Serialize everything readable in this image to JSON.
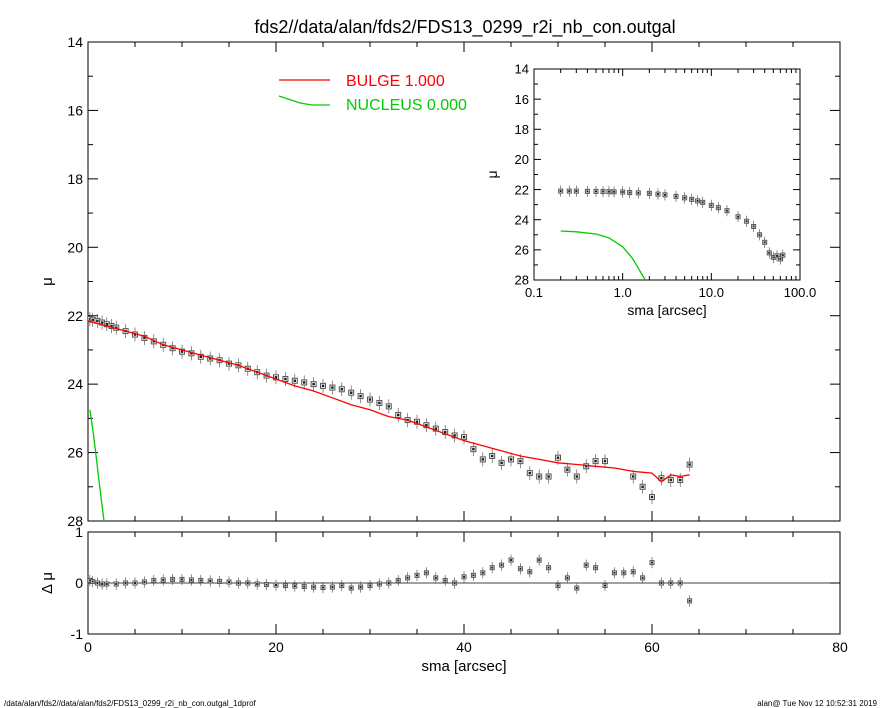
{
  "title": "fds2//data/alan/fds2/FDS13_0299_r2i_nb_con.outgal",
  "footer": {
    "left": "/data/alan/fds2//data/alan/fds2/FDS13_0299_r2i_nb_con.outgal_1dprof",
    "right": "alan@  Tue Nov 12 10:52:31 2019"
  },
  "colors": {
    "data": "#000000",
    "bulge": "#ff0000",
    "nucleus": "#00cc00",
    "markers": "#555555"
  },
  "chart_data": [
    {
      "id": "main-profile",
      "type": "scatter",
      "xlabel": "",
      "ylabel": "μ",
      "xlim": [
        0,
        80
      ],
      "ylim": [
        28,
        14
      ],
      "x_ticks": [],
      "y_ticks": [
        "14",
        "16",
        "18",
        "20",
        "22",
        "24",
        "26",
        "28"
      ],
      "legend": [
        {
          "label": "BULGE  1.000",
          "color": "#ff0000"
        },
        {
          "label": "NUCLEUS  0.000",
          "color": "#00cc00"
        }
      ],
      "legend_position": "top-center",
      "series": [
        {
          "kind": "points",
          "x": [
            0.2,
            0.5,
            1,
            1.5,
            2,
            2.5,
            3,
            4,
            5,
            6,
            7,
            8,
            9,
            10,
            11,
            12,
            13,
            14,
            15,
            16,
            17,
            18,
            19,
            20,
            21,
            22,
            23,
            24,
            25,
            26,
            27,
            28,
            29,
            30,
            31,
            32,
            33,
            34,
            35,
            36,
            37,
            38,
            39,
            40,
            41,
            42,
            43,
            44,
            45,
            46,
            47,
            48,
            49,
            50,
            51,
            52,
            53,
            54,
            55,
            58,
            59,
            60,
            61,
            62,
            63,
            64
          ],
          "y": [
            22.1,
            22.12,
            22.15,
            22.2,
            22.25,
            22.3,
            22.35,
            22.45,
            22.55,
            22.65,
            22.75,
            22.85,
            22.95,
            23.05,
            23.1,
            23.2,
            23.25,
            23.3,
            23.4,
            23.45,
            23.55,
            23.65,
            23.75,
            23.8,
            23.85,
            23.9,
            23.95,
            24.0,
            24.05,
            24.1,
            24.15,
            24.25,
            24.35,
            24.45,
            24.55,
            24.65,
            24.9,
            25.05,
            25.1,
            25.2,
            25.3,
            25.4,
            25.5,
            25.55,
            25.9,
            26.2,
            26.1,
            26.3,
            26.2,
            26.25,
            26.6,
            26.7,
            26.7,
            26.15,
            26.5,
            26.7,
            26.4,
            26.25,
            26.25,
            26.7,
            27.0,
            27.3,
            26.75,
            26.8,
            26.8,
            26.35
          ]
        },
        {
          "kind": "line",
          "name": "BULGE",
          "color": "#ff0000",
          "x": [
            0,
            2,
            4,
            6,
            8,
            10,
            12,
            14,
            16,
            18,
            20,
            22,
            24,
            26,
            28,
            30,
            32,
            34,
            36,
            38,
            40,
            42,
            44,
            46,
            48,
            50,
            52,
            54,
            56,
            58,
            60,
            61,
            62,
            63,
            64
          ],
          "y": [
            22.15,
            22.3,
            22.45,
            22.6,
            22.85,
            23.0,
            23.15,
            23.3,
            23.45,
            23.65,
            23.85,
            24.05,
            24.2,
            24.4,
            24.6,
            24.75,
            24.95,
            25.05,
            25.25,
            25.45,
            25.65,
            25.8,
            25.95,
            26.1,
            26.2,
            26.3,
            26.35,
            26.4,
            26.45,
            26.55,
            26.6,
            26.85,
            26.65,
            26.7,
            26.65
          ]
        },
        {
          "kind": "line",
          "name": "NUCLEUS",
          "color": "#00cc00",
          "x": [
            0.2,
            0.5,
            0.8,
            1.1,
            1.4,
            1.7
          ],
          "y": [
            24.75,
            25.3,
            25.95,
            26.65,
            27.35,
            28.0
          ]
        }
      ]
    },
    {
      "id": "residuals",
      "type": "scatter",
      "xlabel": "sma [arcsec]",
      "ylabel": "Δ μ",
      "xlim": [
        0,
        80
      ],
      "ylim": [
        -1,
        1
      ],
      "x_ticks": [
        "0",
        "20",
        "40",
        "60",
        "80"
      ],
      "y_ticks": [
        "-1",
        "0",
        "1"
      ],
      "zero_line": true,
      "series": [
        {
          "kind": "points",
          "x": [
            0.2,
            0.5,
            1,
            1.5,
            2,
            3,
            4,
            5,
            6,
            7,
            8,
            9,
            10,
            11,
            12,
            13,
            14,
            15,
            16,
            17,
            18,
            19,
            20,
            21,
            22,
            23,
            24,
            25,
            26,
            27,
            28,
            29,
            30,
            31,
            32,
            33,
            34,
            35,
            36,
            37,
            38,
            39,
            40,
            41,
            42,
            43,
            44,
            45,
            46,
            47,
            48,
            49,
            50,
            51,
            52,
            53,
            54,
            55,
            56,
            57,
            58,
            59,
            60,
            61,
            62,
            63,
            64
          ],
          "y": [
            0.05,
            0.03,
            0.0,
            -0.02,
            -0.02,
            -0.02,
            0.0,
            0.0,
            0.02,
            0.05,
            0.06,
            0.07,
            0.07,
            0.06,
            0.05,
            0.04,
            0.03,
            0.02,
            0.0,
            0.0,
            -0.02,
            -0.03,
            -0.04,
            -0.05,
            -0.06,
            -0.07,
            -0.08,
            -0.09,
            -0.08,
            -0.05,
            -0.1,
            -0.08,
            -0.05,
            -0.02,
            0.0,
            0.05,
            0.1,
            0.15,
            0.2,
            0.1,
            0.05,
            0.0,
            0.12,
            0.15,
            0.2,
            0.3,
            0.35,
            0.45,
            0.28,
            0.22,
            0.45,
            0.3,
            -0.05,
            0.1,
            -0.1,
            0.35,
            0.3,
            -0.05,
            0.2,
            0.2,
            0.22,
            0.1,
            0.4,
            0.0,
            0.0,
            0.0,
            -0.35
          ]
        }
      ]
    },
    {
      "id": "inset-log-profile",
      "type": "scatter",
      "xlabel": "sma [arcsec]",
      "ylabel": "μ",
      "x_scale": "log",
      "xlim": [
        0.1,
        100
      ],
      "ylim": [
        28,
        14
      ],
      "x_ticks": [
        "0.1",
        "1.0",
        "10.0",
        "100.0"
      ],
      "y_ticks": [
        "14",
        "16",
        "18",
        "20",
        "22",
        "24",
        "26",
        "28"
      ],
      "series": [
        {
          "kind": "points",
          "x": [
            0.2,
            0.25,
            0.3,
            0.4,
            0.5,
            0.6,
            0.7,
            0.8,
            1.0,
            1.2,
            1.5,
            2.0,
            2.5,
            3.0,
            4.0,
            5.0,
            6.0,
            7.0,
            8.0,
            10.0,
            12.0,
            15.0,
            20.0,
            25.0,
            30.0,
            35.0,
            40.0,
            45.0,
            50.0,
            55.0,
            60.0,
            64.0
          ],
          "y": [
            22.1,
            22.1,
            22.1,
            22.12,
            22.12,
            22.13,
            22.14,
            22.15,
            22.16,
            22.2,
            22.22,
            22.25,
            22.3,
            22.35,
            22.45,
            22.55,
            22.65,
            22.75,
            22.85,
            23.05,
            23.2,
            23.4,
            23.8,
            24.1,
            24.45,
            25.0,
            25.5,
            26.2,
            26.5,
            26.4,
            26.6,
            26.35
          ]
        },
        {
          "kind": "line",
          "name": "NUCLEUS",
          "color": "#00cc00",
          "x": [
            0.2,
            0.3,
            0.5,
            0.7,
            1.0,
            1.3,
            1.6,
            1.8
          ],
          "y": [
            24.75,
            24.8,
            24.95,
            25.2,
            25.8,
            26.6,
            27.5,
            28.0
          ]
        }
      ]
    }
  ]
}
